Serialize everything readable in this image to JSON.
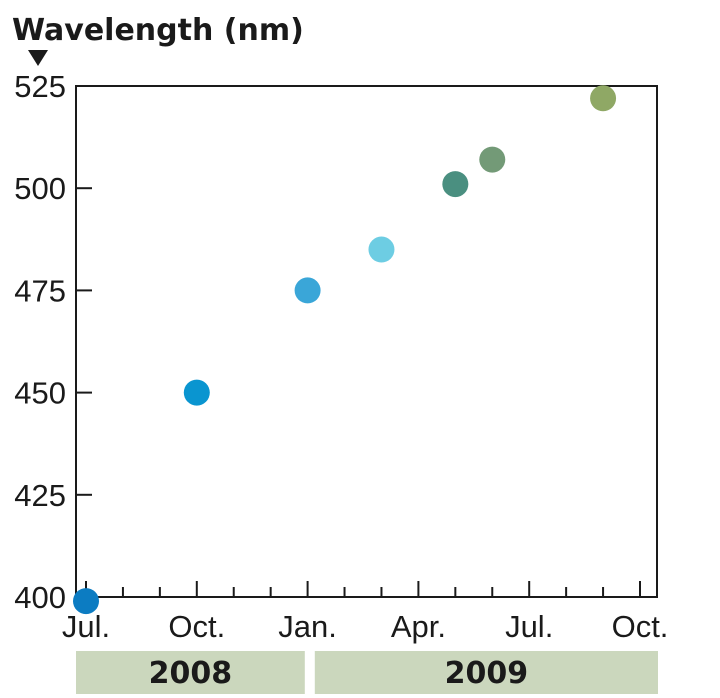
{
  "chart_data": {
    "type": "scatter",
    "ylabel": "Wavelength (nm)",
    "ylim": [
      400,
      525
    ],
    "yticks": [
      400,
      425,
      450,
      475,
      500,
      525
    ],
    "x_tick_labels": [
      "Jul.",
      "Oct.",
      "Jan.",
      "Apr.",
      "Jul.",
      "Oct."
    ],
    "year_bands": [
      {
        "label": "2008",
        "months": 6
      },
      {
        "label": "2009",
        "months": 9
      }
    ],
    "grid": false,
    "x_axis": {
      "start": "2008-07",
      "end": "2009-10",
      "ticks": "monthly"
    },
    "points": [
      {
        "x": "2008-07",
        "y": 399,
        "color": "#0c7cc2"
      },
      {
        "x": "2008-10",
        "y": 450,
        "color": "#0a95d0"
      },
      {
        "x": "2009-01",
        "y": 475,
        "color": "#3aa6d8"
      },
      {
        "x": "2009-03",
        "y": 485,
        "color": "#6dcde3"
      },
      {
        "x": "2009-05",
        "y": 501,
        "color": "#4a8f80"
      },
      {
        "x": "2009-06",
        "y": 507,
        "color": "#739a77"
      },
      {
        "x": "2009-09",
        "y": 522,
        "color": "#8fa865"
      }
    ],
    "colors": {
      "axis": "#1a1a1a",
      "year_band": "#cbd7bd"
    }
  }
}
